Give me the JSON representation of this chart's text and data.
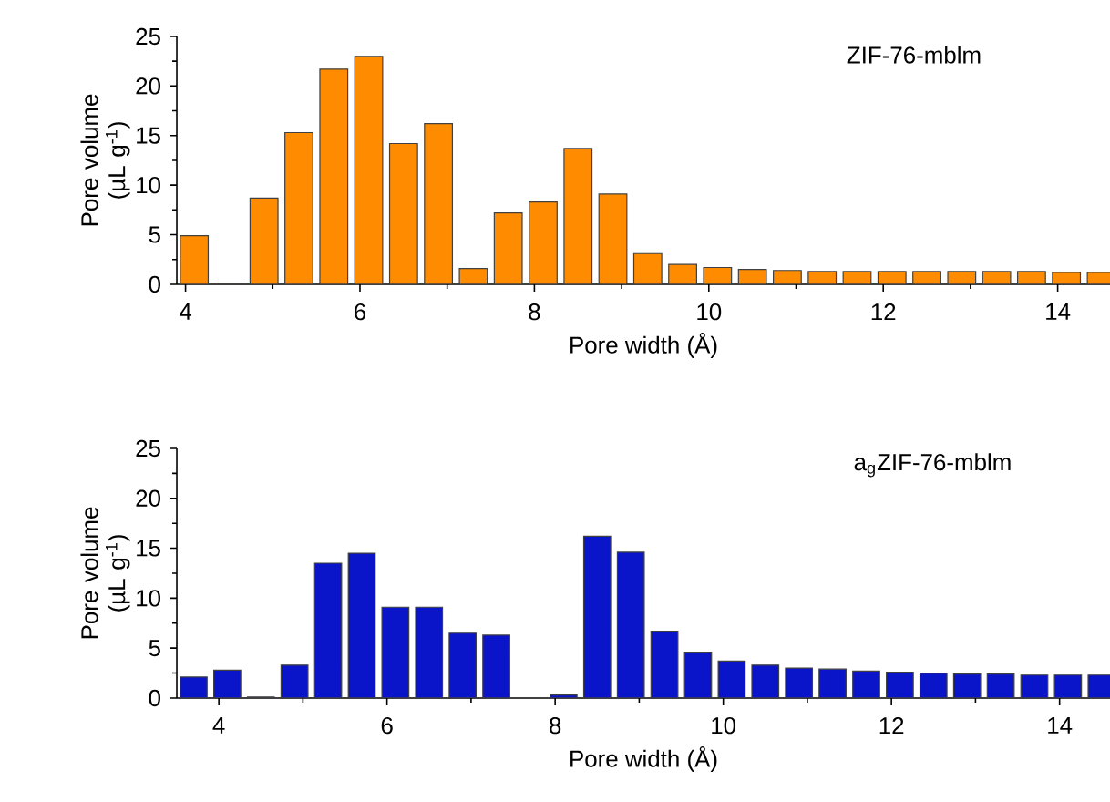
{
  "chart_data": [
    {
      "type": "bar",
      "title": "ZIF-76-mblm",
      "xlabel": "Pore width (Å)",
      "ylabel": "Pore volume (µL g$^{-1}$)",
      "color": "#ff8c00",
      "x": [
        4.1,
        4.5,
        4.9,
        5.3,
        5.7,
        6.1,
        6.5,
        6.9,
        7.3,
        7.7,
        8.1,
        8.5,
        8.9,
        9.3,
        9.7,
        10.1,
        10.5,
        10.9,
        11.3,
        11.7,
        12.1,
        12.5,
        12.9,
        13.3,
        13.7,
        14.1,
        14.5
      ],
      "values": [
        4.9,
        0.1,
        8.7,
        15.3,
        21.7,
        23.0,
        14.2,
        16.2,
        1.6,
        7.2,
        8.3,
        13.7,
        9.1,
        3.1,
        2.0,
        1.7,
        1.5,
        1.4,
        1.3,
        1.3,
        1.3,
        1.3,
        1.3,
        1.3,
        1.3,
        1.2,
        1.2
      ],
      "xlim": [
        3.9,
        14.6
      ],
      "xticks": [
        4,
        6,
        8,
        10,
        12,
        14
      ],
      "ylim": [
        0,
        25
      ],
      "yticks": [
        0,
        5,
        10,
        15,
        20,
        25
      ]
    },
    {
      "type": "bar",
      "title": "a$_{g}$ZIF-76-mblm",
      "xlabel": "Pore width (Å)",
      "ylabel": "Pore volume (µL g$^{-1}$)",
      "color": "#0a14c8",
      "x": [
        3.7,
        4.1,
        4.5,
        4.9,
        5.3,
        5.7,
        6.1,
        6.5,
        6.9,
        7.3,
        7.7,
        8.1,
        8.5,
        8.9,
        9.3,
        9.7,
        10.1,
        10.5,
        10.9,
        11.3,
        11.7,
        12.1,
        12.5,
        12.9,
        13.3,
        13.7,
        14.1,
        14.5
      ],
      "values": [
        2.1,
        2.8,
        0.1,
        3.3,
        13.5,
        14.5,
        9.1,
        9.1,
        6.5,
        6.3,
        0,
        0.3,
        16.2,
        14.6,
        6.7,
        4.6,
        3.7,
        3.3,
        3.0,
        2.9,
        2.7,
        2.6,
        2.5,
        2.4,
        2.4,
        2.3,
        2.3,
        2.3
      ],
      "xlim": [
        3.5,
        14.6
      ],
      "xticks": [
        4,
        6,
        8,
        10,
        12,
        14
      ],
      "ylim": [
        0,
        25
      ],
      "yticks": [
        0,
        5,
        10,
        15,
        20,
        25
      ]
    }
  ]
}
